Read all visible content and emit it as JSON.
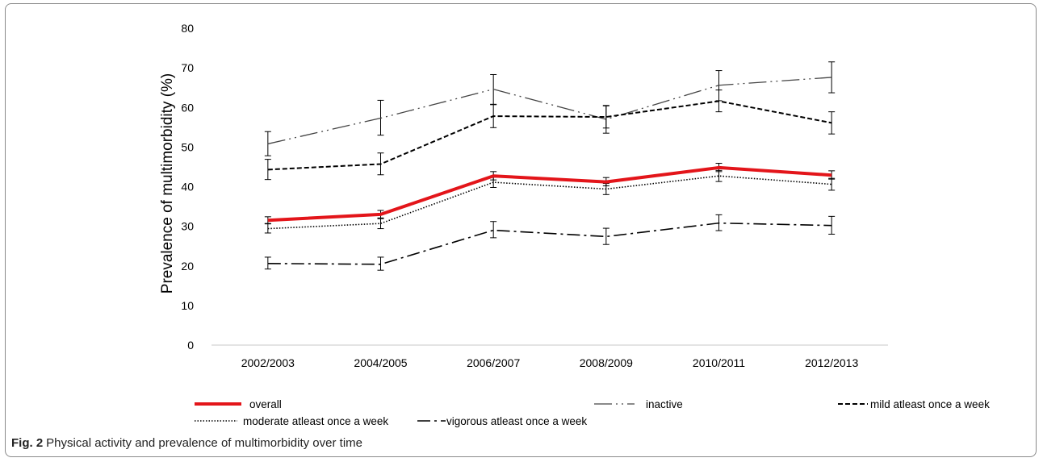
{
  "caption": {
    "label": "Fig. 2",
    "text": "Physical activity and prevalence of multimorbidity over time"
  },
  "chart_data": {
    "type": "line",
    "title": "",
    "xlabel": "",
    "ylabel": "Prevalence of multimorbidity (%)",
    "ylim": [
      0,
      80
    ],
    "yticks": [
      0,
      10,
      20,
      30,
      40,
      50,
      60,
      70,
      80
    ],
    "categories": [
      "2002/2003",
      "2004/2005",
      "2006/2007",
      "2008/2009",
      "2010/2011",
      "2012/2013"
    ],
    "grid": false,
    "legend_position": "bottom",
    "series": [
      {
        "name": "overall",
        "style": "solid-bold",
        "color": "#e3151a",
        "values": [
          31.5,
          33.0,
          42.7,
          41.2,
          44.8,
          42.9
        ],
        "error": [
          [
            30.7,
            32.4
          ],
          [
            32.1,
            34.0
          ],
          [
            41.7,
            43.8
          ],
          [
            40.2,
            42.3
          ],
          [
            43.8,
            45.9
          ],
          [
            41.9,
            44.0
          ]
        ]
      },
      {
        "name": "inactive",
        "style": "long-dash-dot-dot",
        "color": "#444444",
        "values": [
          50.8,
          57.3,
          64.6,
          57.0,
          65.6,
          67.6
        ],
        "error": [
          [
            47.8,
            53.9
          ],
          [
            53.0,
            61.8
          ],
          [
            60.8,
            68.3
          ],
          [
            53.5,
            60.5
          ],
          [
            61.7,
            69.3
          ],
          [
            63.7,
            71.5
          ]
        ]
      },
      {
        "name": "mild atleast once a week",
        "style": "dash",
        "color": "#000000",
        "values": [
          44.3,
          45.7,
          57.8,
          57.6,
          61.6,
          56.1
        ],
        "error": [
          [
            41.8,
            46.9
          ],
          [
            43.0,
            48.5
          ],
          [
            54.9,
            60.7
          ],
          [
            54.8,
            60.4
          ],
          [
            58.9,
            64.4
          ],
          [
            53.3,
            58.9
          ]
        ]
      },
      {
        "name": "moderate atleast once a week",
        "style": "dot",
        "color": "#000000",
        "values": [
          29.4,
          30.7,
          41.1,
          39.4,
          42.7,
          40.6
        ],
        "error": [
          [
            28.3,
            30.6
          ],
          [
            29.4,
            31.9
          ],
          [
            39.8,
            42.4
          ],
          [
            38.0,
            40.8
          ],
          [
            41.3,
            44.1
          ],
          [
            39.1,
            42.1
          ]
        ]
      },
      {
        "name": "vigorous atleast once a week",
        "style": "dash-dot",
        "color": "#000000",
        "values": [
          20.6,
          20.4,
          29.0,
          27.4,
          30.8,
          30.2
        ],
        "error": [
          [
            19.2,
            22.2
          ],
          [
            18.9,
            22.2
          ],
          [
            27.1,
            31.2
          ],
          [
            25.4,
            29.5
          ],
          [
            28.9,
            32.9
          ],
          [
            28.0,
            32.5
          ]
        ]
      }
    ]
  }
}
